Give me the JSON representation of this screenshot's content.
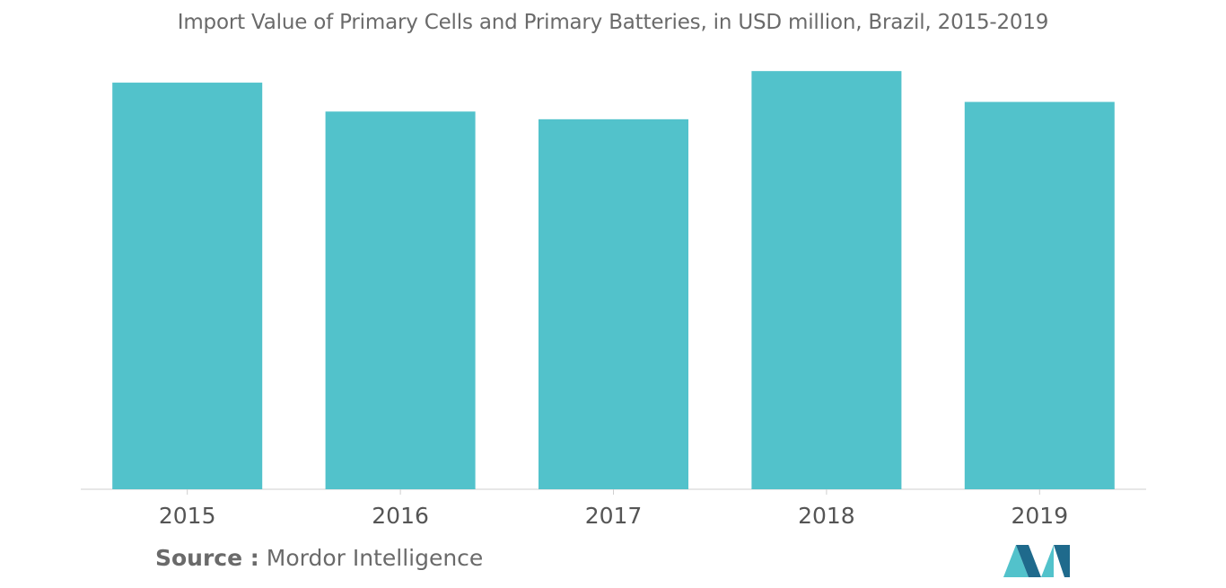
{
  "chart_data": {
    "type": "bar",
    "title": "Import Value of Primary Cells and Primary Batteries, in USD million, Brazil, 2015-2019",
    "categories": [
      "2015",
      "2016",
      "2017",
      "2018",
      "2019"
    ],
    "values": [
      42.2,
      39.2,
      38.4,
      43.4,
      40.2
    ],
    "xlabel": "",
    "ylabel": "",
    "ylim": [
      0,
      45
    ],
    "grid": false,
    "legend": "none",
    "bar_color": "#52c2cb"
  },
  "source": {
    "label": "Source :",
    "text": "Mordor Intelligence"
  },
  "colors": {
    "title": "#6a6a6a",
    "axis": "#cfcfcf",
    "logo_dark": "#1f6a8c",
    "logo_light": "#52c2cb"
  }
}
